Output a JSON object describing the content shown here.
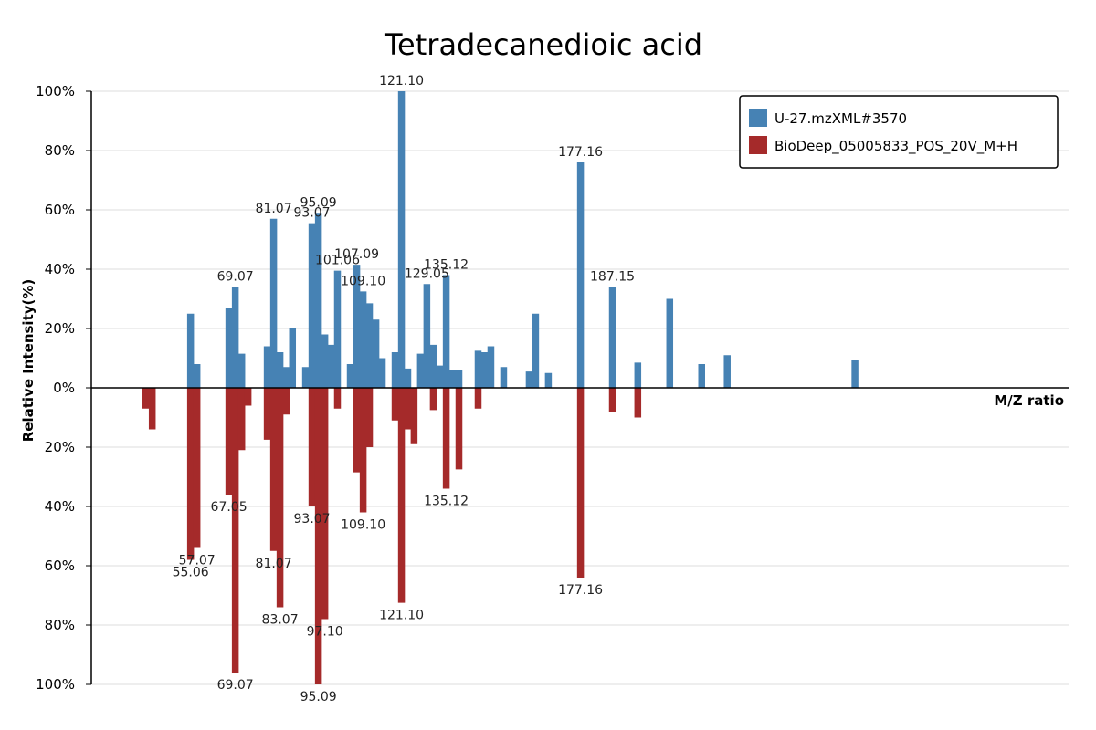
{
  "chart_data": {
    "type": "bar",
    "title": "Tetradecanedioic acid",
    "xlabel": "M/Z ratio",
    "ylabel": "Relative Intensity(%)",
    "ylim": [
      -100,
      100
    ],
    "y_ticks": [
      {
        "value": 100,
        "label": "100%"
      },
      {
        "value": 80,
        "label": "80%"
      },
      {
        "value": 60,
        "label": "60%"
      },
      {
        "value": 40,
        "label": "40%"
      },
      {
        "value": 20,
        "label": "20%"
      },
      {
        "value": 0,
        "label": "0%"
      },
      {
        "value": -20,
        "label": "20%"
      },
      {
        "value": -40,
        "label": "40%"
      },
      {
        "value": -60,
        "label": "60%"
      },
      {
        "value": -80,
        "label": "80%"
      },
      {
        "value": -100,
        "label": "100%"
      }
    ],
    "grid": true,
    "legend_position": "top-right",
    "colors": {
      "top": "#4682b4",
      "bottom": "#a52a2a"
    },
    "series": [
      {
        "name": "U-27.mzXML#3570",
        "direction": "up",
        "peaks": [
          {
            "mz": 55.06,
            "value": 25
          },
          {
            "mz": 57.07,
            "value": 8
          },
          {
            "mz": 67.05,
            "value": 27
          },
          {
            "mz": 69.07,
            "value": 34,
            "label": "69.07"
          },
          {
            "mz": 71.09,
            "value": 11.5
          },
          {
            "mz": 79.06,
            "value": 14
          },
          {
            "mz": 81.07,
            "value": 57,
            "label": "81.07"
          },
          {
            "mz": 83.07,
            "value": 12
          },
          {
            "mz": 85.07,
            "value": 7
          },
          {
            "mz": 86.98,
            "value": 20
          },
          {
            "mz": 91.07,
            "value": 7
          },
          {
            "mz": 93.07,
            "value": 55.5,
            "label": "93.07"
          },
          {
            "mz": 95.09,
            "value": 59,
            "label": "95.09"
          },
          {
            "mz": 97.1,
            "value": 18
          },
          {
            "mz": 99.06,
            "value": 14.5
          },
          {
            "mz": 101.06,
            "value": 39.5,
            "label": "101.06"
          },
          {
            "mz": 105.07,
            "value": 8
          },
          {
            "mz": 107.09,
            "value": 41.5,
            "label": "107.09"
          },
          {
            "mz": 109.1,
            "value": 32.5,
            "label": "109.10"
          },
          {
            "mz": 111.08,
            "value": 28.5
          },
          {
            "mz": 113.1,
            "value": 23
          },
          {
            "mz": 115.09,
            "value": 10
          },
          {
            "mz": 119.09,
            "value": 12
          },
          {
            "mz": 121.1,
            "value": 100,
            "label": "121.10"
          },
          {
            "mz": 123.08,
            "value": 6.5
          },
          {
            "mz": 127.05,
            "value": 11.5
          },
          {
            "mz": 129.05,
            "value": 35,
            "label": "129.05"
          },
          {
            "mz": 131.07,
            "value": 14.5
          },
          {
            "mz": 133.1,
            "value": 7.5
          },
          {
            "mz": 135.12,
            "value": 38,
            "label": "135.12"
          },
          {
            "mz": 137.1,
            "value": 6
          },
          {
            "mz": 139.1,
            "value": 6
          },
          {
            "mz": 145.1,
            "value": 12.5
          },
          {
            "mz": 147.1,
            "value": 12
          },
          {
            "mz": 149.1,
            "value": 14
          },
          {
            "mz": 153.1,
            "value": 7
          },
          {
            "mz": 161.1,
            "value": 5.5
          },
          {
            "mz": 163.1,
            "value": 25
          },
          {
            "mz": 167.1,
            "value": 5
          },
          {
            "mz": 177.16,
            "value": 76,
            "label": "177.16"
          },
          {
            "mz": 187.15,
            "value": 34,
            "label": "187.15"
          },
          {
            "mz": 195.1,
            "value": 8.5
          },
          {
            "mz": 205.1,
            "value": 30
          },
          {
            "mz": 215.1,
            "value": 8
          },
          {
            "mz": 223.1,
            "value": 11
          },
          {
            "mz": 263.1,
            "value": 9.5
          }
        ]
      },
      {
        "name": "BioDeep_05005833_POS_20V_M+H",
        "direction": "down",
        "peaks": [
          {
            "mz": 41.04,
            "value": 7
          },
          {
            "mz": 43.06,
            "value": 14
          },
          {
            "mz": 55.06,
            "value": 58,
            "label": "55.06"
          },
          {
            "mz": 57.07,
            "value": 54,
            "label": "57.07"
          },
          {
            "mz": 67.05,
            "value": 36,
            "label": "67.05"
          },
          {
            "mz": 69.07,
            "value": 96,
            "label": "69.07"
          },
          {
            "mz": 71.09,
            "value": 21
          },
          {
            "mz": 73.07,
            "value": 6
          },
          {
            "mz": 79.06,
            "value": 17.5
          },
          {
            "mz": 81.07,
            "value": 55,
            "label": "81.07"
          },
          {
            "mz": 83.07,
            "value": 74,
            "label": "83.07"
          },
          {
            "mz": 85.07,
            "value": 9
          },
          {
            "mz": 93.07,
            "value": 40,
            "label": "93.07"
          },
          {
            "mz": 95.09,
            "value": 100,
            "label": "95.09"
          },
          {
            "mz": 97.1,
            "value": 78,
            "label": "97.10"
          },
          {
            "mz": 101.06,
            "value": 7
          },
          {
            "mz": 107.09,
            "value": 28.5
          },
          {
            "mz": 109.1,
            "value": 42,
            "label": "109.10"
          },
          {
            "mz": 111.08,
            "value": 20
          },
          {
            "mz": 119.09,
            "value": 11
          },
          {
            "mz": 121.1,
            "value": 72.5,
            "label": "121.10"
          },
          {
            "mz": 123.08,
            "value": 14
          },
          {
            "mz": 125.05,
            "value": 19
          },
          {
            "mz": 131.07,
            "value": 7.5
          },
          {
            "mz": 135.12,
            "value": 34,
            "label": "135.12"
          },
          {
            "mz": 139.1,
            "value": 27.5
          },
          {
            "mz": 145.1,
            "value": 7
          },
          {
            "mz": 177.16,
            "value": 64,
            "label": "177.16"
          },
          {
            "mz": 187.15,
            "value": 8
          },
          {
            "mz": 195.1,
            "value": 10
          }
        ]
      }
    ]
  }
}
